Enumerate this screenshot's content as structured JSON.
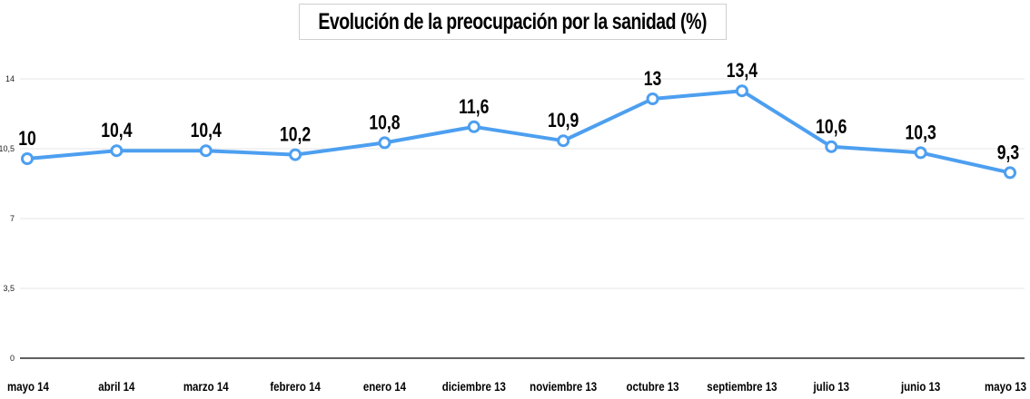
{
  "chart_data": {
    "type": "line",
    "title": "Evolución de la preocupación por la sanidad (%)",
    "categories": [
      "mayo 14",
      "abril 14",
      "marzo 14",
      "febrero 14",
      "enero 14",
      "diciembre 13",
      "noviembre 13",
      "octubre 13",
      "septiembre 13",
      "julio 13",
      "junio 13",
      "mayo 13"
    ],
    "series": [
      {
        "values": [
          10,
          10.4,
          10.4,
          10.2,
          10.8,
          11.6,
          10.9,
          13,
          13.4,
          10.6,
          10.3,
          9.3
        ],
        "labels": [
          "10",
          "10,4",
          "10,4",
          "10,2",
          "10,8",
          "11,6",
          "10,9",
          "13",
          "13,4",
          "10,6",
          "10,3",
          "9,3"
        ]
      }
    ],
    "yticks": [
      0,
      3.5,
      7,
      10.5,
      14
    ],
    "ytick_labels": [
      "0",
      "3,5",
      "7",
      "10,5",
      "14"
    ],
    "ylim": [
      0,
      14
    ],
    "grid": true,
    "line_color": "#4d9ff0",
    "xlabel": "",
    "ylabel": ""
  }
}
